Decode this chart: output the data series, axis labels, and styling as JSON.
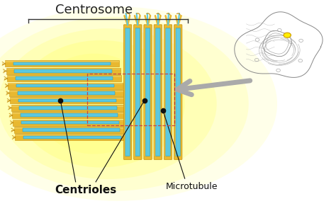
{
  "title": "Centrosome",
  "label_centrioles": "Centrioles",
  "label_microtubule": "Microtubule",
  "bg_color": "#ffffff",
  "glow_outer": "#fffde0",
  "glow_inner": "#ffff99",
  "tube_gold": "#e8b830",
  "tube_gold_dark": "#c89010",
  "tube_gold_light": "#f5d060",
  "tube_blue": "#5bc8e0",
  "tube_blue_dark": "#2090b0",
  "dot_color": "#111111",
  "arrow_color": "#aaaaaa",
  "line_color": "#111111",
  "dashed_color": "#cc4444",
  "bracket_color": "#333333",
  "title_fontsize": 13,
  "label_fontsize": 11,
  "microtubule_fontsize": 9,
  "fig_width": 4.74,
  "fig_height": 2.98,
  "dpi": 100
}
